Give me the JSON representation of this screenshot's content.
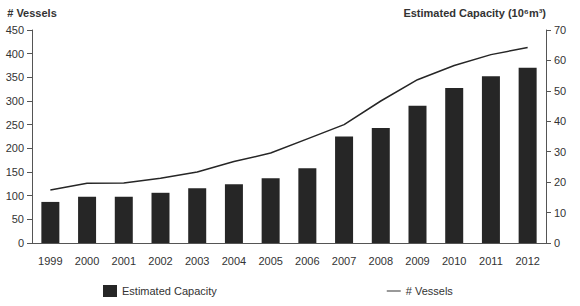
{
  "chart_data": {
    "type": "bar",
    "y_label": "# Vessels",
    "y2_label": "Estimated Capacity (10⁶m³)",
    "categories": [
      "1999",
      "2000",
      "2001",
      "2002",
      "2003",
      "2004",
      "2005",
      "2006",
      "2007",
      "2008",
      "2009",
      "2010",
      "2011",
      "2012"
    ],
    "series": [
      {
        "name": "Estimated Capacity",
        "type": "bar",
        "axis": "y2",
        "color": "#262626",
        "values": [
          13.5,
          15.2,
          15.2,
          16.5,
          18.0,
          19.3,
          21.3,
          24.6,
          35.0,
          37.8,
          45.1,
          50.9,
          54.8,
          57.6
        ]
      },
      {
        "name": "# Vessels",
        "type": "line",
        "color": "#262626",
        "line_style": "solid",
        "values": [
          112,
          126,
          127,
          137,
          150,
          172,
          190,
          220,
          250,
          300,
          345,
          375,
          398,
          413
        ]
      }
    ],
    "ylim": [
      0,
      450
    ],
    "yticks": [
      0,
      50,
      100,
      150,
      200,
      250,
      300,
      350,
      400,
      450
    ],
    "y2lim": [
      0,
      70
    ],
    "y2ticks": [
      0,
      10,
      20,
      30,
      40,
      50,
      60,
      70
    ],
    "grid": false,
    "legend": "bottom"
  }
}
